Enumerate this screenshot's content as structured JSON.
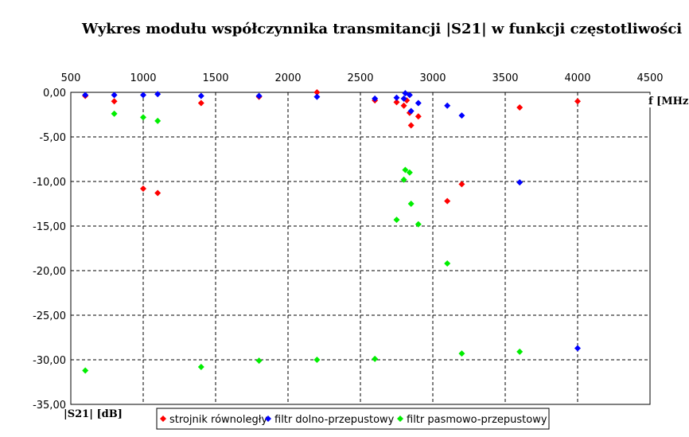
{
  "chart_data": {
    "type": "scatter",
    "title": "Wykres modułu współczynnika transmitancji |S21| w funkcji częstotliwości",
    "xlabel": "f [MHz]",
    "ylabel": "|S21| [dB]",
    "xlim": [
      500,
      4500
    ],
    "ylim": [
      -35,
      0
    ],
    "xticks": [
      "500",
      "1000",
      "1500",
      "2000",
      "2500",
      "3000",
      "3500",
      "4000",
      "4500"
    ],
    "yticks": [
      "0,00",
      "-5,00",
      "-10,00",
      "-15,00",
      "-20,00",
      "-25,00",
      "-30,00",
      "-35,00"
    ],
    "grid": true,
    "legend_position": "bottom",
    "series": [
      {
        "name": "strojnik równoległy",
        "color": "#ff0000",
        "points": [
          [
            600,
            -0.4
          ],
          [
            800,
            -1.0
          ],
          [
            1000,
            -10.8
          ],
          [
            1100,
            -11.3
          ],
          [
            1400,
            -1.2
          ],
          [
            1800,
            -0.5
          ],
          [
            2200,
            0.0
          ],
          [
            2600,
            -0.9
          ],
          [
            2750,
            -1.1
          ],
          [
            2800,
            -1.5
          ],
          [
            2820,
            -0.9
          ],
          [
            2840,
            -2.3
          ],
          [
            2850,
            -3.7
          ],
          [
            2900,
            -2.7
          ],
          [
            3100,
            -12.2
          ],
          [
            3200,
            -10.3
          ],
          [
            3600,
            -1.7
          ],
          [
            4000,
            -1.0
          ]
        ]
      },
      {
        "name": "filtr dolno-przepustowy",
        "color": "#0000ff",
        "points": [
          [
            600,
            -0.3
          ],
          [
            800,
            -0.3
          ],
          [
            1000,
            -0.3
          ],
          [
            1100,
            -0.2
          ],
          [
            1400,
            -0.4
          ],
          [
            1800,
            -0.4
          ],
          [
            2200,
            -0.5
          ],
          [
            2600,
            -0.7
          ],
          [
            2750,
            -0.6
          ],
          [
            2800,
            -0.7
          ],
          [
            2810,
            -0.1
          ],
          [
            2840,
            -0.3
          ],
          [
            2850,
            -2.1
          ],
          [
            2900,
            -1.2
          ],
          [
            3100,
            -1.5
          ],
          [
            3200,
            -2.6
          ],
          [
            3600,
            -10.1
          ],
          [
            4000,
            -28.7
          ]
        ]
      },
      {
        "name": "filtr pasmowo-przepustowy",
        "color": "#00ee00",
        "points": [
          [
            600,
            -31.2
          ],
          [
            800,
            -2.4
          ],
          [
            1000,
            -2.8
          ],
          [
            1100,
            -3.2
          ],
          [
            1400,
            -30.8
          ],
          [
            1800,
            -30.1
          ],
          [
            2200,
            -30.0
          ],
          [
            2600,
            -29.9
          ],
          [
            2750,
            -14.3
          ],
          [
            2800,
            -9.8
          ],
          [
            2810,
            -8.7
          ],
          [
            2840,
            -9.0
          ],
          [
            2850,
            -12.5
          ],
          [
            2900,
            -14.8
          ],
          [
            3100,
            -19.2
          ],
          [
            3200,
            -29.3
          ],
          [
            3600,
            -29.1
          ]
        ]
      }
    ]
  }
}
